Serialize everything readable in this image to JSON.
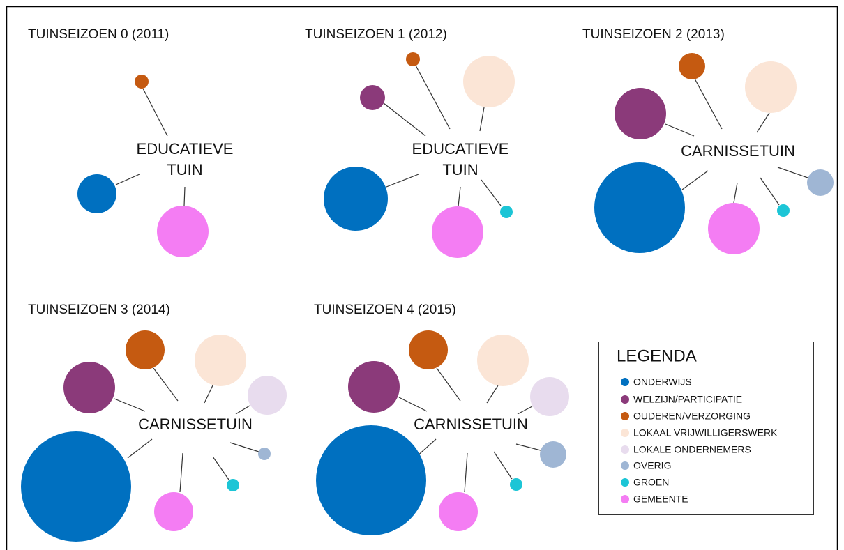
{
  "panels": [
    {
      "title": "TUINSEIZOEN 0 (2011)",
      "center_label": [
        "EDUCATIEVE",
        "TUIN"
      ]
    },
    {
      "title": "TUINSEIZOEN 1 (2012)",
      "center_label": [
        "EDUCATIEVE",
        "TUIN"
      ]
    },
    {
      "title": "TUINSEIZOEN 2 (2013)",
      "center_label": [
        "CARNISSETUIN"
      ]
    },
    {
      "title": "TUINSEIZOEN 3 (2014)",
      "center_label": [
        "CARNISSETUIN"
      ]
    },
    {
      "title": "TUINSEIZOEN 4 (2015)",
      "center_label": [
        "CARNISSETUIN"
      ]
    }
  ],
  "legend": {
    "title": "LEGENDA",
    "items": [
      "ONDERWIJS",
      "WELZIJN/PARTICIPATIE",
      "OUDEREN/VERZORGING",
      "LOKAAL VRIJWILLIGERSWERK",
      "LOKALE ONDERNEMERS",
      "OVERIG",
      "GROEN",
      "GEMEENTE"
    ]
  }
}
